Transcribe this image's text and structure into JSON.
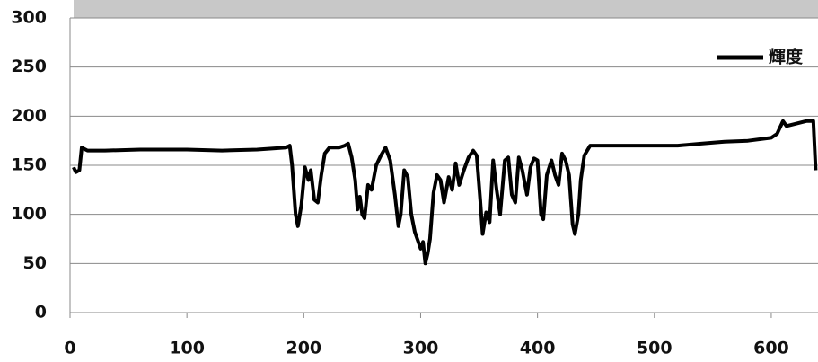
{
  "chart_data": {
    "type": "line",
    "x": [
      3,
      5,
      8,
      10,
      15,
      30,
      60,
      100,
      130,
      160,
      185,
      188,
      190,
      193,
      195,
      198,
      201,
      204,
      206,
      209,
      212,
      215,
      218,
      222,
      230,
      235,
      238,
      241,
      244,
      246,
      248,
      250,
      252,
      255,
      258,
      262,
      266,
      270,
      274,
      278,
      281,
      283,
      286,
      289,
      292,
      295,
      298,
      300,
      302,
      304,
      306,
      308,
      311,
      314,
      317,
      320,
      324,
      327,
      330,
      333,
      337,
      341,
      345,
      348,
      351,
      353,
      356,
      359,
      362,
      365,
      368,
      372,
      375,
      378,
      381,
      384,
      387,
      391,
      394,
      397,
      400,
      403,
      405,
      408,
      412,
      415,
      418,
      421,
      424,
      427,
      430,
      432,
      435,
      437,
      440,
      445,
      460,
      480,
      500,
      520,
      540,
      560,
      580,
      600,
      605,
      610,
      613,
      620,
      630,
      636,
      638
    ],
    "series": [
      {
        "name": "輝度",
        "color": "#000000",
        "values": [
          148,
          143,
          145,
          168,
          165,
          165,
          166,
          166,
          165,
          166,
          168,
          170,
          150,
          100,
          88,
          110,
          148,
          135,
          145,
          115,
          112,
          140,
          162,
          168,
          168,
          170,
          172,
          158,
          135,
          105,
          118,
          100,
          96,
          130,
          125,
          150,
          160,
          168,
          155,
          120,
          88,
          100,
          145,
          138,
          100,
          82,
          72,
          65,
          72,
          50,
          60,
          75,
          122,
          140,
          135,
          112,
          138,
          125,
          152,
          130,
          145,
          158,
          165,
          160,
          115,
          80,
          102,
          92,
          155,
          125,
          100,
          155,
          158,
          120,
          112,
          158,
          145,
          120,
          148,
          157,
          155,
          100,
          95,
          140,
          155,
          140,
          130,
          162,
          155,
          140,
          90,
          80,
          100,
          135,
          160,
          170,
          170,
          170,
          170,
          170,
          172,
          174,
          175,
          178,
          182,
          195,
          190,
          192,
          195,
          195,
          145
        ]
      }
    ],
    "xlim": [
      0,
      640
    ],
    "xticks": [
      0,
      100,
      200,
      300,
      400,
      500,
      600
    ],
    "ylim": [
      0,
      300
    ],
    "yticks": [
      0,
      50,
      100,
      150,
      200,
      250,
      300
    ],
    "grid": true,
    "legend": "upper right"
  }
}
